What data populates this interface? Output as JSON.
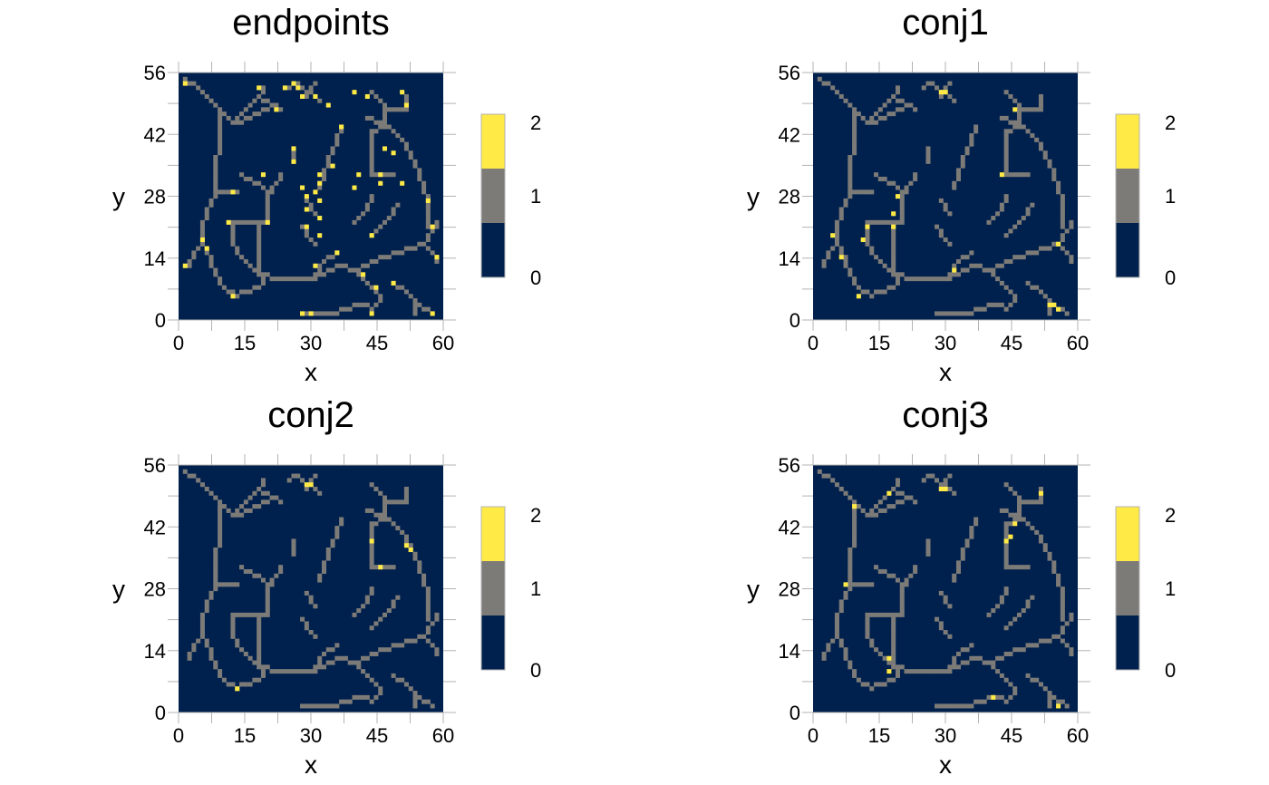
{
  "colors": {
    "background": "#ffffff",
    "value_0": "#00204d",
    "value_1": "#7c7b78",
    "value_2": "#ffea46",
    "axis_gray": "#b3b3b3"
  },
  "chart_data": [
    {
      "type": "heatmap",
      "title": "endpoints",
      "xlabel": "x",
      "ylabel": "y",
      "xlim": [
        0,
        60
      ],
      "ylim": [
        0,
        56
      ],
      "xticks": [
        "0",
        "15",
        "30",
        "45",
        "60"
      ],
      "yticks": [
        "0",
        "14",
        "28",
        "42",
        "56"
      ],
      "colorbar": {
        "ticks": [
          "0",
          "1",
          "2"
        ],
        "colors": [
          "#00204d",
          "#7c7b78",
          "#ffea46"
        ]
      },
      "highlight_value": 2,
      "highlight_cells": [
        [
          1,
          54
        ],
        [
          18,
          53
        ],
        [
          22,
          48
        ],
        [
          24,
          53
        ],
        [
          26,
          54
        ],
        [
          27,
          53
        ],
        [
          28,
          51
        ],
        [
          31,
          51
        ],
        [
          34,
          49
        ],
        [
          40,
          52
        ],
        [
          43,
          51
        ],
        [
          51,
          52
        ],
        [
          52,
          49
        ],
        [
          37,
          44
        ],
        [
          26,
          39
        ],
        [
          26,
          36
        ],
        [
          35,
          35
        ],
        [
          47,
          39
        ],
        [
          49,
          38
        ],
        [
          32,
          33
        ],
        [
          19,
          33
        ],
        [
          41,
          33
        ],
        [
          46,
          33
        ],
        [
          46,
          31
        ],
        [
          51,
          31
        ],
        [
          32,
          31
        ],
        [
          40,
          30
        ],
        [
          28,
          30
        ],
        [
          12,
          29
        ],
        [
          31,
          29
        ],
        [
          29,
          28
        ],
        [
          32,
          27
        ],
        [
          57,
          27
        ],
        [
          29,
          25
        ],
        [
          11,
          22
        ],
        [
          20,
          22
        ],
        [
          58,
          21
        ],
        [
          32,
          23
        ],
        [
          29,
          21
        ],
        [
          32,
          19
        ],
        [
          5,
          18
        ],
        [
          44,
          19
        ],
        [
          6,
          16
        ],
        [
          36,
          15
        ],
        [
          59,
          14
        ],
        [
          1,
          12
        ],
        [
          31,
          12
        ],
        [
          42,
          10
        ],
        [
          49,
          8
        ],
        [
          45,
          7
        ],
        [
          12,
          5
        ],
        [
          28,
          1
        ],
        [
          30,
          1
        ],
        [
          44,
          1
        ],
        [
          58,
          1
        ]
      ],
      "skeleton_value": 1
    },
    {
      "type": "heatmap",
      "title": "conj1",
      "xlabel": "x",
      "ylabel": "y",
      "xlim": [
        0,
        60
      ],
      "ylim": [
        0,
        56
      ],
      "xticks": [
        "0",
        "15",
        "30",
        "45",
        "60"
      ],
      "yticks": [
        "0",
        "14",
        "28",
        "42",
        "56"
      ],
      "colorbar": {
        "ticks": [
          "0",
          "1",
          "2"
        ],
        "colors": [
          "#00204d",
          "#7c7b78",
          "#ffea46"
        ]
      },
      "highlight_value": 2,
      "highlight_cells": [
        [
          29,
          52
        ],
        [
          30,
          52
        ],
        [
          46,
          48
        ],
        [
          43,
          33
        ],
        [
          19,
          28
        ],
        [
          18,
          24
        ],
        [
          12,
          21
        ],
        [
          18,
          21
        ],
        [
          4,
          19
        ],
        [
          11,
          18
        ],
        [
          56,
          17
        ],
        [
          6,
          14
        ],
        [
          32,
          11
        ],
        [
          10,
          5
        ],
        [
          54,
          3
        ],
        [
          55,
          3
        ],
        [
          56,
          2
        ]
      ],
      "skeleton_value": 1
    },
    {
      "type": "heatmap",
      "title": "conj2",
      "xlabel": "x",
      "ylabel": "y",
      "xlim": [
        0,
        60
      ],
      "ylim": [
        0,
        56
      ],
      "xticks": [
        "0",
        "15",
        "30",
        "45",
        "60"
      ],
      "yticks": [
        "0",
        "14",
        "28",
        "42",
        "56"
      ],
      "colorbar": {
        "ticks": [
          "0",
          "1",
          "2"
        ],
        "colors": [
          "#00204d",
          "#7c7b78",
          "#ffea46"
        ]
      },
      "highlight_value": 2,
      "highlight_cells": [
        [
          29,
          52
        ],
        [
          30,
          52
        ],
        [
          44,
          39
        ],
        [
          52,
          38
        ],
        [
          53,
          37
        ],
        [
          46,
          33
        ],
        [
          13,
          5
        ]
      ],
      "skeleton_value": 1
    },
    {
      "type": "heatmap",
      "title": "conj3",
      "xlabel": "x",
      "ylabel": "y",
      "xlim": [
        0,
        60
      ],
      "ylim": [
        0,
        56
      ],
      "xticks": [
        "0",
        "15",
        "30",
        "45",
        "60"
      ],
      "yticks": [
        "0",
        "14",
        "28",
        "42",
        "56"
      ],
      "colorbar": {
        "ticks": [
          "0",
          "1",
          "2"
        ],
        "colors": [
          "#00204d",
          "#7c7b78",
          "#ffea46"
        ]
      },
      "highlight_value": 2,
      "highlight_cells": [
        [
          9,
          47
        ],
        [
          17,
          50
        ],
        [
          29,
          51
        ],
        [
          30,
          51
        ],
        [
          52,
          50
        ],
        [
          46,
          43
        ],
        [
          45,
          40
        ],
        [
          44,
          39
        ],
        [
          7,
          29
        ],
        [
          17,
          12
        ],
        [
          17,
          9
        ],
        [
          41,
          3
        ],
        [
          56,
          1
        ]
      ],
      "skeleton_value": 1
    }
  ]
}
